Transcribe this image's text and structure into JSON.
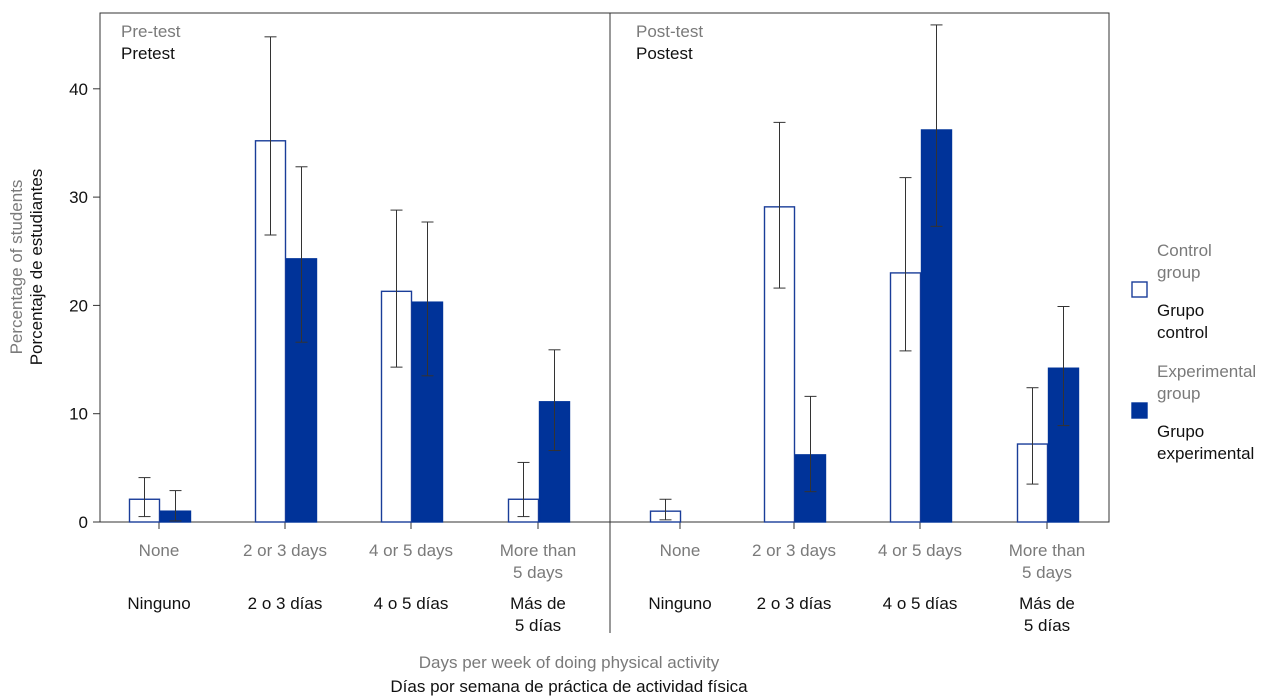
{
  "chart_data": {
    "type": "bar",
    "ylabel": {
      "en": "Percentage of students",
      "es": "Porcentaje de estudiantes"
    },
    "xlabel": {
      "en": "Days per week of doing physical activity",
      "es": "Días por semana de práctica de actividad física"
    },
    "ylim": [
      0,
      47
    ],
    "yticks": [
      0,
      10,
      20,
      30,
      40
    ],
    "grid": false,
    "legend_position": "right",
    "legend": [
      {
        "series": "control",
        "en": "Control group",
        "es": "Grupo control",
        "style": "outline",
        "color": "#1a3d99"
      },
      {
        "series": "experimental",
        "en": "Experimental group",
        "es": "Grupo experimental",
        "style": "filled",
        "color": "#003399"
      }
    ],
    "panels": [
      {
        "title_en": "Pre-test",
        "title_es": "Pretest",
        "categories": [
          {
            "en": "None",
            "es": "Ninguno"
          },
          {
            "en": "2 or 3 days",
            "es": "2 o 3 días"
          },
          {
            "en": "4 or 5 days",
            "es": "4 o 5 días"
          },
          {
            "en": "More than 5 days",
            "es": "Más de 5 días"
          }
        ],
        "series": [
          {
            "key": "control",
            "values": [
              2.1,
              35.2,
              21.3,
              2.1
            ],
            "err_low": [
              0.5,
              26.5,
              14.3,
              0.5
            ],
            "err_high": [
              4.1,
              44.8,
              28.8,
              5.5
            ]
          },
          {
            "key": "experimental",
            "values": [
              1.0,
              24.3,
              20.3,
              11.1
            ],
            "err_low": [
              0.1,
              16.6,
              13.5,
              6.6
            ],
            "err_high": [
              2.9,
              32.8,
              27.7,
              15.9
            ]
          }
        ]
      },
      {
        "title_en": "Post-test",
        "title_es": "Postest",
        "categories": [
          {
            "en": "None",
            "es": "Ninguno"
          },
          {
            "en": "2 or 3 days",
            "es": "2 o 3 días"
          },
          {
            "en": "4 or 5 days",
            "es": "4 o 5 días"
          },
          {
            "en": "More than 5 days",
            "es": "Más de 5 días"
          }
        ],
        "series": [
          {
            "key": "control",
            "values": [
              1.0,
              29.1,
              23.0,
              7.2
            ],
            "err_low": [
              0.2,
              21.6,
              15.8,
              3.5
            ],
            "err_high": [
              2.1,
              36.9,
              31.8,
              12.4
            ]
          },
          {
            "key": "experimental",
            "values": [
              0,
              6.2,
              36.2,
              14.2
            ],
            "err_low": [
              null,
              2.8,
              27.3,
              8.9
            ],
            "err_high": [
              null,
              11.6,
              45.9,
              19.9
            ]
          }
        ]
      }
    ]
  }
}
